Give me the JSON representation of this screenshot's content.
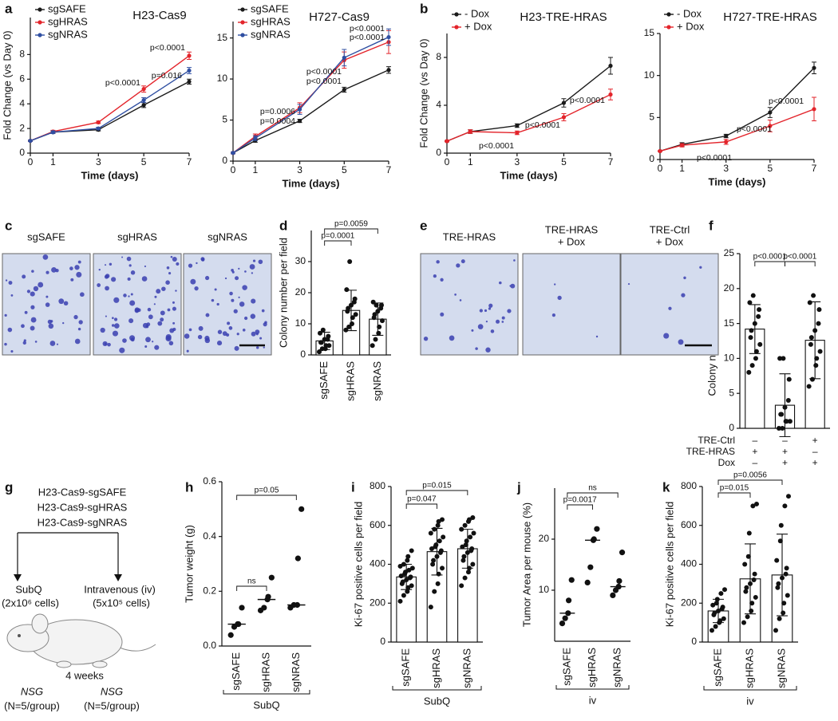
{
  "panel_labels": [
    "a",
    "b",
    "c",
    "d",
    "e",
    "f",
    "g",
    "h",
    "i",
    "j",
    "k"
  ],
  "chart_data": [
    {
      "type": "line",
      "title": "H23-Cas9",
      "xlabel": "Time (days)",
      "ylabel": "Fold Change (vs Day 0)",
      "x": [
        0,
        1,
        3,
        5,
        7
      ],
      "xlim": [
        0,
        7
      ],
      "xticks": [
        0,
        1,
        3,
        5,
        7
      ],
      "ylim": [
        0,
        11
      ],
      "yticks": [
        0,
        2,
        4,
        6,
        8
      ],
      "series": [
        {
          "name": "sgSAFE",
          "color": "#1a1a1a",
          "values": [
            1,
            1.7,
            1.9,
            3.9,
            5.8
          ],
          "errors": [
            0.05,
            0.1,
            0.1,
            0.2,
            0.2
          ]
        },
        {
          "name": "sgHRAS",
          "color": "#e3242b",
          "values": [
            1,
            1.75,
            2.5,
            5.2,
            7.9
          ],
          "errors": [
            0.05,
            0.1,
            0.1,
            0.25,
            0.3
          ]
        },
        {
          "name": "sgNRAS",
          "color": "#2f4fa2",
          "values": [
            1,
            1.7,
            2.0,
            4.3,
            6.7
          ],
          "errors": [
            0.05,
            0.1,
            0.1,
            0.2,
            0.25
          ]
        }
      ],
      "annotations": [
        {
          "text": "p<0.0001",
          "color": "#e3242b"
        },
        {
          "text": "p<0.0001",
          "color": "#e3242b"
        },
        {
          "text": "p=0.016",
          "color": "#2f4fa2"
        }
      ]
    },
    {
      "type": "line",
      "title": "H727-Cas9",
      "xlabel": "Time (days)",
      "x": [
        0,
        1,
        3,
        5,
        7
      ],
      "xlim": [
        0,
        7
      ],
      "xticks": [
        0,
        1,
        3,
        5,
        7
      ],
      "ylim": [
        0,
        17
      ],
      "yticks": [
        0,
        5,
        10,
        15
      ],
      "series": [
        {
          "name": "sgSAFE",
          "color": "#1a1a1a",
          "values": [
            1,
            2.5,
            4.9,
            8.7,
            11.1
          ],
          "errors": [
            0.1,
            0.2,
            0.2,
            0.3,
            0.4
          ]
        },
        {
          "name": "sgHRAS",
          "color": "#e3242b",
          "values": [
            1,
            3.0,
            6.5,
            12.3,
            14.5
          ],
          "errors": [
            0.1,
            0.3,
            0.6,
            1.0,
            1.4
          ]
        },
        {
          "name": "sgNRAS",
          "color": "#2f4fa2",
          "values": [
            1,
            2.8,
            6.3,
            12.6,
            15.1
          ],
          "errors": [
            0.1,
            0.3,
            0.6,
            1.0,
            1.0
          ]
        }
      ],
      "annotations": [
        {
          "text": "p=0.0006",
          "color": "#2f4fa2"
        },
        {
          "text": "p=0.0004",
          "color": "#e3242b"
        },
        {
          "text": "p<0.0001",
          "color": "#2f4fa2"
        },
        {
          "text": "p<0.0001",
          "color": "#e3242b"
        },
        {
          "text": "p<0.0001",
          "color": "#2f4fa2"
        },
        {
          "text": "p<0.0001",
          "color": "#e3242b"
        }
      ]
    },
    {
      "type": "line",
      "title": "H23-TRE-HRAS",
      "xlabel": "Time (days)",
      "ylabel": "Fold Change (vs Day 0)",
      "x": [
        0,
        1,
        3,
        5,
        7
      ],
      "xlim": [
        0,
        7
      ],
      "xticks": [
        0,
        1,
        3,
        5,
        7
      ],
      "ylim": [
        0,
        10
      ],
      "yticks": [
        0,
        4,
        8
      ],
      "series": [
        {
          "name": "- Dox",
          "color": "#1a1a1a",
          "values": [
            1,
            1.8,
            2.3,
            4.2,
            7.3
          ],
          "errors": [
            0.05,
            0.15,
            0.15,
            0.35,
            0.7
          ]
        },
        {
          "name": "+ Dox",
          "color": "#e3242b",
          "values": [
            1,
            1.8,
            1.7,
            3.0,
            4.9
          ],
          "errors": [
            0.05,
            0.15,
            0.15,
            0.3,
            0.45
          ]
        }
      ],
      "annotations": [
        {
          "text": "p<0.0001",
          "color": "#e3242b"
        },
        {
          "text": "p<0.0001",
          "color": "#e3242b"
        },
        {
          "text": "p<0.0001",
          "color": "#e3242b"
        }
      ]
    },
    {
      "type": "line",
      "title": "H727-TRE-HRAS",
      "xlabel": "Time (days)",
      "x": [
        0,
        1,
        3,
        5,
        7
      ],
      "xlim": [
        0,
        7
      ],
      "xticks": [
        0,
        1,
        3,
        5,
        7
      ],
      "ylim": [
        0,
        15
      ],
      "yticks": [
        0,
        5,
        10,
        15
      ],
      "series": [
        {
          "name": "- Dox",
          "color": "#1a1a1a",
          "values": [
            1,
            1.8,
            2.8,
            5.6,
            10.9
          ],
          "errors": [
            0.05,
            0.2,
            0.2,
            0.6,
            0.7
          ]
        },
        {
          "name": "+ Dox",
          "color": "#e3242b",
          "values": [
            1,
            1.7,
            2.1,
            4.0,
            6.0
          ],
          "errors": [
            0.05,
            0.2,
            0.3,
            0.7,
            1.4
          ]
        }
      ],
      "annotations": [
        {
          "text": "p<0.0001",
          "color": "#e3242b"
        },
        {
          "text": "p<0.0001",
          "color": "#e3242b"
        },
        {
          "text": "p<0.0001",
          "color": "#e3242b"
        }
      ]
    },
    {
      "type": "bar",
      "ylabel": "Colony number per field",
      "categories": [
        "sgSAFE",
        "sgHRAS",
        "sgNRAS"
      ],
      "values": [
        4.5,
        14.3,
        11.5
      ],
      "errors": [
        2.8,
        6.5,
        5.2
      ],
      "color": "#ffffff",
      "points": [
        [
          1,
          2,
          2,
          3,
          3,
          4,
          4,
          5,
          5,
          6,
          7,
          8
        ],
        [
          8,
          9,
          10,
          12,
          13,
          14,
          15,
          16,
          17,
          18,
          21,
          30
        ],
        [
          3,
          5,
          7,
          9,
          11,
          12,
          13,
          14,
          15,
          16,
          17,
          16
        ]
      ],
      "ylim": [
        0,
        40
      ],
      "yticks": [
        0,
        10,
        20,
        30
      ],
      "annotations": [
        {
          "text": "p=0.0001"
        },
        {
          "text": "p=0.0059"
        }
      ]
    },
    {
      "type": "bar",
      "ylabel": "Colony number per field",
      "values": [
        14.2,
        3.3,
        12.6
      ],
      "errors": [
        3.5,
        4.5,
        5.5
      ],
      "color": "#ffffff",
      "points": [
        [
          8,
          9,
          10,
          11,
          12,
          13,
          14,
          15,
          16,
          17,
          18,
          19
        ],
        [
          0,
          0,
          1,
          1,
          1,
          2,
          2,
          3,
          4,
          7,
          10,
          10
        ],
        [
          6,
          7,
          9,
          10,
          11,
          12,
          13,
          14,
          15,
          17,
          18,
          19
        ]
      ],
      "ylim": [
        0,
        25
      ],
      "yticks": [
        0,
        5,
        10,
        15,
        20,
        25
      ],
      "annotations": [
        {
          "text": "p<0.0001"
        },
        {
          "text": "p<0.0001"
        }
      ]
    },
    {
      "type": "dot",
      "ylabel": "Tumor weight (g)",
      "categories": [
        "sgSAFE",
        "sgHRAS",
        "sgNRAS"
      ],
      "group_label": "SubQ",
      "values": [
        0.08,
        0.17,
        0.15
      ],
      "points": [
        [
          0.04,
          0.07,
          0.08,
          0.08,
          0.14
        ],
        [
          0.13,
          0.14,
          0.17,
          0.18,
          0.25
        ],
        [
          0.14,
          0.15,
          0.15,
          0.32,
          0.5
        ]
      ],
      "ylim": [
        0,
        0.6
      ],
      "yticks": [
        {
          "value": 0,
          "label": "0.0"
        },
        0.2,
        0.4,
        0.6
      ],
      "annotations": [
        {
          "text": "ns"
        },
        {
          "text": "p=0.05"
        }
      ]
    },
    {
      "type": "bar",
      "ylabel": "Ki-67 positive cells per field",
      "categories": [
        "sgSAFE",
        "sgHRAS",
        "sgNRAS"
      ],
      "group_label": "SubQ",
      "values": [
        335,
        465,
        480
      ],
      "errors": [
        65,
        120,
        100
      ],
      "color": "#ffffff",
      "points": [
        [
          210,
          240,
          260,
          280,
          290,
          300,
          310,
          320,
          330,
          335,
          340,
          350,
          360,
          370,
          380,
          390,
          400,
          420,
          440,
          470
        ],
        [
          180,
          260,
          300,
          350,
          380,
          400,
          420,
          440,
          460,
          470,
          480,
          490,
          500,
          520,
          540,
          560,
          580,
          600,
          620,
          630
        ],
        [
          290,
          330,
          360,
          380,
          400,
          420,
          440,
          460,
          470,
          480,
          490,
          500,
          520,
          540,
          560,
          580,
          600,
          620,
          630,
          640
        ]
      ],
      "ylim": [
        0,
        800
      ],
      "yticks": [
        0,
        200,
        400,
        600,
        800
      ],
      "annotations": [
        {
          "text": "p=0.047"
        },
        {
          "text": "p=0.015"
        }
      ]
    },
    {
      "type": "dot",
      "ylabel": "Tumor Area per mouse (%)",
      "categories": [
        "sgSAFE",
        "sgHRAS",
        "sgNRAS"
      ],
      "group_label": "iv",
      "values": [
        5.5,
        19.8,
        10.7
      ],
      "points": [
        [
          3.5,
          4.5,
          5.5,
          8,
          12
        ],
        [
          11.5,
          14.5,
          19.8,
          20,
          22
        ],
        [
          9,
          10,
          10.7,
          11.8,
          17.4
        ]
      ],
      "ylim": [
        0,
        30
      ],
      "yticks": [
        10,
        20
      ],
      "annotations": [
        {
          "text": "p=0.0017"
        },
        {
          "text": "ns"
        }
      ]
    },
    {
      "type": "bar",
      "ylabel": "Ki-67 positive cells per field",
      "categories": [
        "sgSAFE",
        "sgHRAS",
        "sgNRAS"
      ],
      "group_label": "iv",
      "values": [
        160,
        325,
        345
      ],
      "errors": [
        60,
        180,
        210
      ],
      "color": "#ffffff",
      "points": [
        [
          60,
          80,
          100,
          110,
          120,
          140,
          150,
          160,
          170,
          180,
          190,
          200,
          220,
          250,
          270
        ],
        [
          100,
          130,
          160,
          200,
          230,
          260,
          280,
          300,
          320,
          350,
          400,
          440,
          560,
          700,
          710
        ],
        [
          60,
          120,
          150,
          200,
          240,
          280,
          300,
          330,
          350,
          380,
          420,
          520,
          600,
          700,
          750
        ]
      ],
      "ylim": [
        0,
        800
      ],
      "yticks": [
        0,
        200,
        400,
        600,
        800
      ],
      "annotations": [
        {
          "text": "p=0.015"
        },
        {
          "text": "p=0.0056"
        }
      ]
    }
  ],
  "micrographs": [
    {
      "labels": [
        [
          "sgSAFE"
        ],
        [
          "sgHRAS"
        ],
        [
          "sgNRAS"
        ]
      ]
    },
    {
      "labels": [
        [
          "TRE-HRAS"
        ],
        [
          "TRE-HRAS",
          "+ Dox"
        ],
        [
          "TRE-Ctrl",
          "+ Dox"
        ]
      ]
    }
  ],
  "condition_table": {
    "rows": [
      {
        "label": "TRE-Ctrl",
        "cells": [
          "–",
          "–",
          "+"
        ]
      },
      {
        "label": "TRE-HRAS",
        "cells": [
          "+",
          "+",
          "–"
        ]
      },
      {
        "label": "Dox",
        "cells": [
          "–",
          "+",
          "+"
        ]
      }
    ]
  },
  "schematic": {
    "lines": [
      "H23-Cas9-sgSAFE",
      "H23-Cas9-sgHRAS",
      "H23-Cas9-sgNRAS"
    ],
    "left_route": "SubQ",
    "left_dose": "(2x10⁶ cells)",
    "right_route": "Intravenous (iv)",
    "right_dose": "(5x10⁵ cells)",
    "duration": "4 weeks",
    "strain": "NSG",
    "group_size": "(N=5/group)"
  }
}
